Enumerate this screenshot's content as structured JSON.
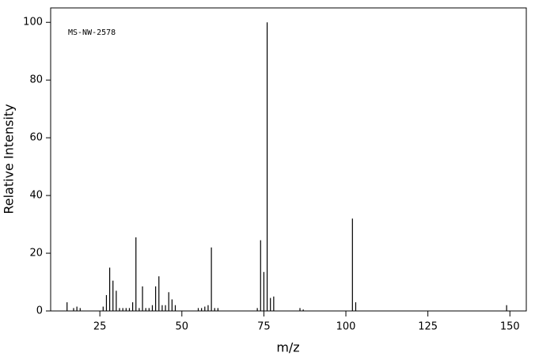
{
  "chart_data": {
    "type": "spectrum",
    "annotation": "MS-NW-2578",
    "x_label": "m/z",
    "y_label": "Relative Intensity",
    "color": "#000000",
    "x": [
      15,
      17,
      18,
      19,
      26,
      27,
      28,
      29,
      30,
      31,
      32,
      33,
      34,
      35,
      36,
      37,
      38,
      39,
      40,
      41,
      42,
      43,
      44,
      45,
      46,
      47,
      48,
      55,
      56,
      57,
      58,
      59,
      60,
      61,
      73,
      74,
      75,
      76,
      77,
      78,
      86,
      87,
      102,
      103,
      149
    ],
    "values": [
      3,
      1,
      1.5,
      1,
      1.5,
      5.5,
      15,
      10.5,
      7,
      1,
      1,
      1,
      1,
      3,
      25.5,
      1,
      8.5,
      1,
      1,
      2,
      8.5,
      12,
      2,
      2,
      6.5,
      4,
      2,
      1,
      1,
      1.5,
      2,
      22,
      1,
      1,
      1,
      24.5,
      13.5,
      100,
      4.5,
      5,
      1,
      0.5,
      32,
      3,
      2
    ],
    "xlim": [
      10,
      155
    ],
    "ylim": [
      0,
      105
    ],
    "xticks": [
      25,
      50,
      75,
      100,
      125,
      150
    ],
    "yticks": [
      0,
      20,
      40,
      60,
      80,
      100
    ]
  }
}
